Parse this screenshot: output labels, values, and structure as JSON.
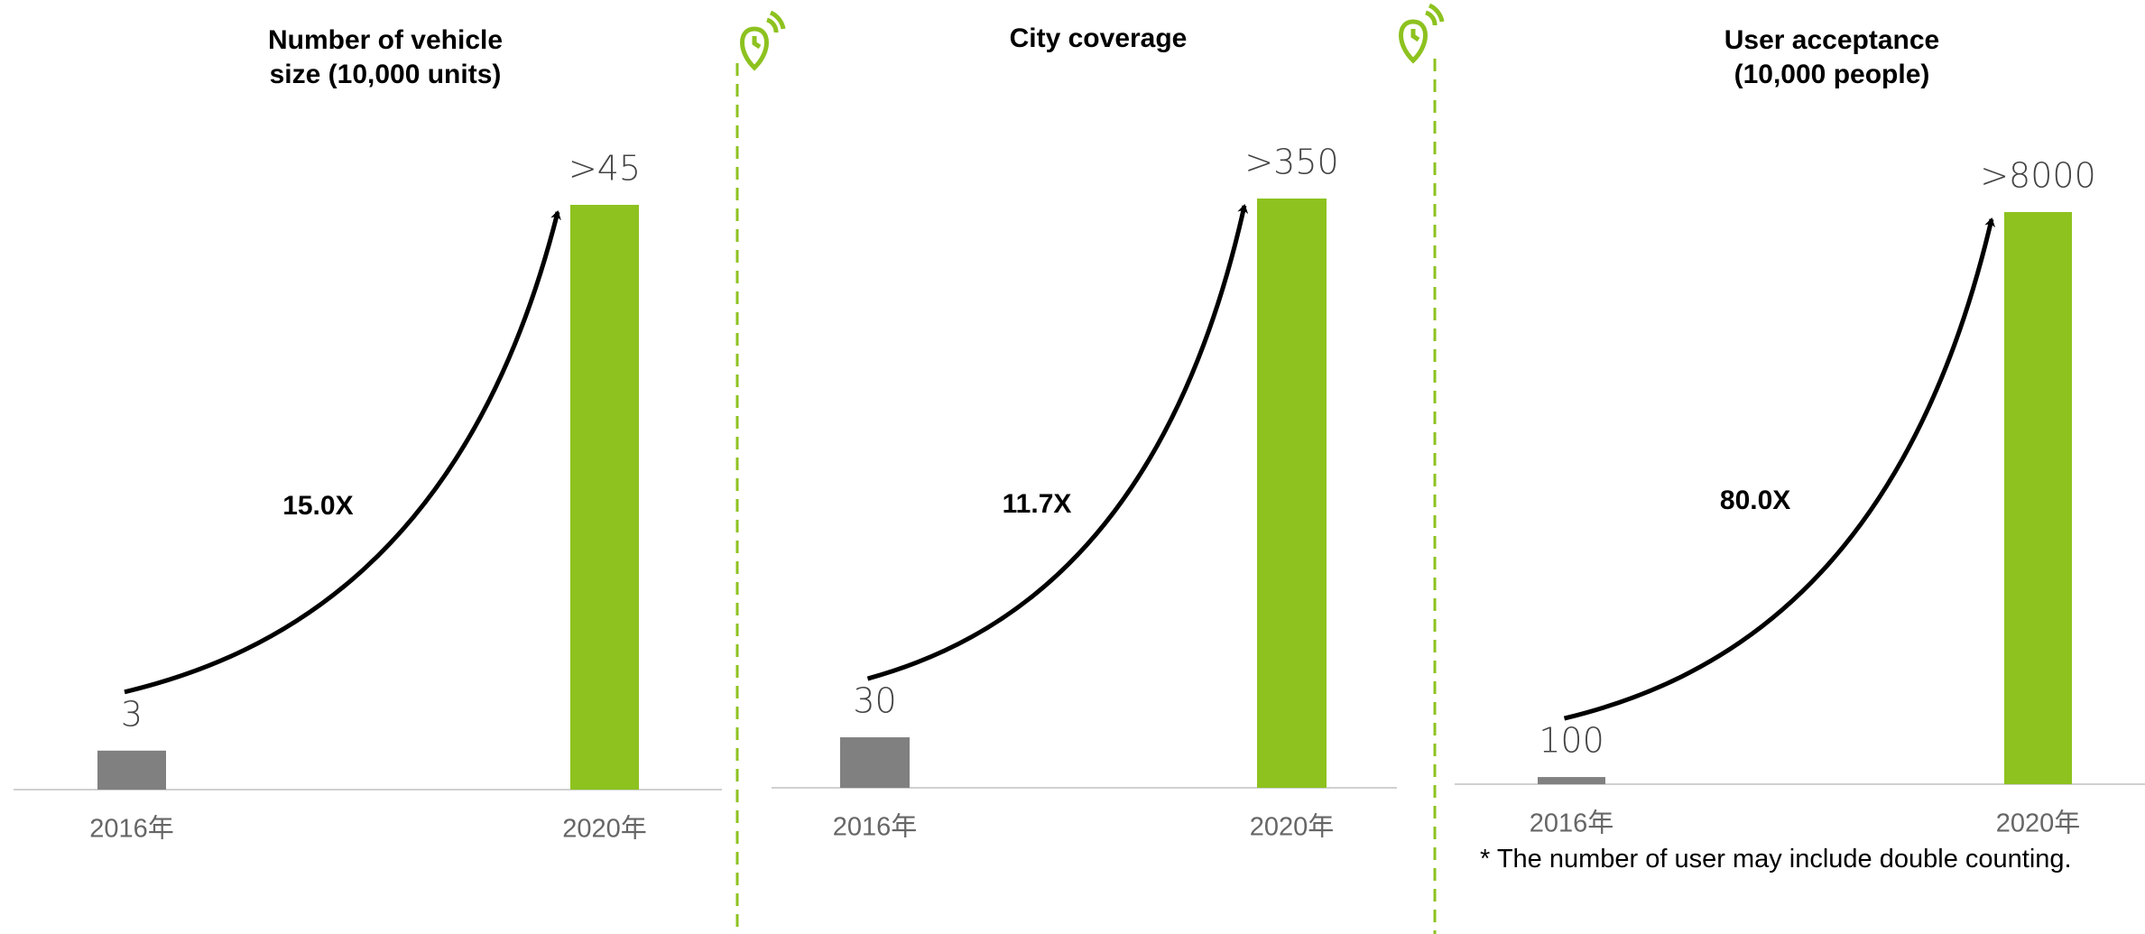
{
  "chart_data": [
    {
      "type": "bar",
      "title": "Number of vehicle size (10,000 units)",
      "categories": [
        "2016年",
        "2020年"
      ],
      "values": [
        3,
        45
      ],
      "value_labels": [
        "3",
        ">45"
      ],
      "colors": [
        "#808080",
        "#8dc21f"
      ],
      "annotation": "15.0X"
    },
    {
      "type": "bar",
      "title": "City coverage",
      "categories": [
        "2016年",
        "2020年"
      ],
      "values": [
        30,
        350
      ],
      "value_labels": [
        "30",
        ">350"
      ],
      "colors": [
        "#808080",
        "#8dc21f"
      ],
      "annotation": "11.7X"
    },
    {
      "type": "bar",
      "title": "User acceptance (10,000 people)",
      "categories": [
        "2016年",
        "2020年"
      ],
      "values": [
        100,
        8000
      ],
      "value_labels": [
        "100",
        ">8000"
      ],
      "colors": [
        "#808080",
        "#8dc21f"
      ],
      "annotation": "80.0X"
    }
  ],
  "footnote": "* The number of user may include double counting."
}
